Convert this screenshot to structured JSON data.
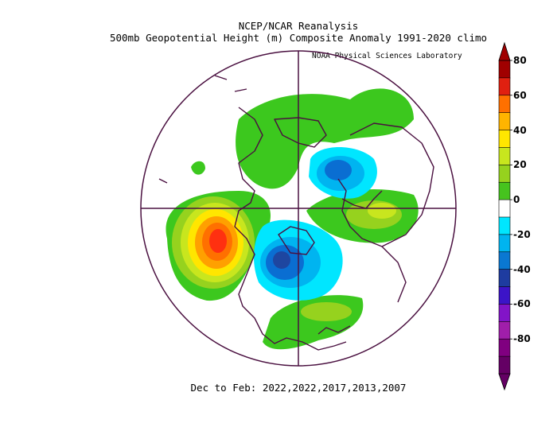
{
  "header": {
    "title": "NCEP/NCAR Reanalysis",
    "subtitle": "500mb Geopotential Height (m) Composite Anomaly 1991-2020 climo",
    "credit": "NOAA Physical Sciences Laboratory"
  },
  "footer": {
    "period": "Dec to Feb: 2022,2022,2017,2013,2007"
  },
  "colorbar": {
    "labels": [
      "80",
      "60",
      "40",
      "20",
      "0",
      "-20",
      "-40",
      "-60",
      "-80"
    ],
    "colors": [
      "#a00000",
      "#e02010",
      "#ff7000",
      "#ffb400",
      "#ffe600",
      "#c8e61e",
      "#96d21e",
      "#46c31e",
      "#ffffff",
      "#00e6ff",
      "#00b4f0",
      "#0a78d2",
      "#1e3ca0",
      "#3c14c8",
      "#8214c8",
      "#a01eaa",
      "#800080",
      "#640064"
    ]
  },
  "map": {
    "projection": "north-polar-stereographic",
    "colors": {
      "boundary": "#4a1040",
      "green": "#3cc81e",
      "lightgreen": "#96d21e",
      "yellowgreen": "#c8e61e",
      "yellow": "#ffe600",
      "orange": "#ffa000",
      "darkorange": "#ff7000",
      "red": "#ff3010",
      "lightblue": "#00e6ff",
      "cyan": "#00b4f0",
      "blue": "#0a6ed2",
      "darkblue": "#1e46a0"
    }
  }
}
